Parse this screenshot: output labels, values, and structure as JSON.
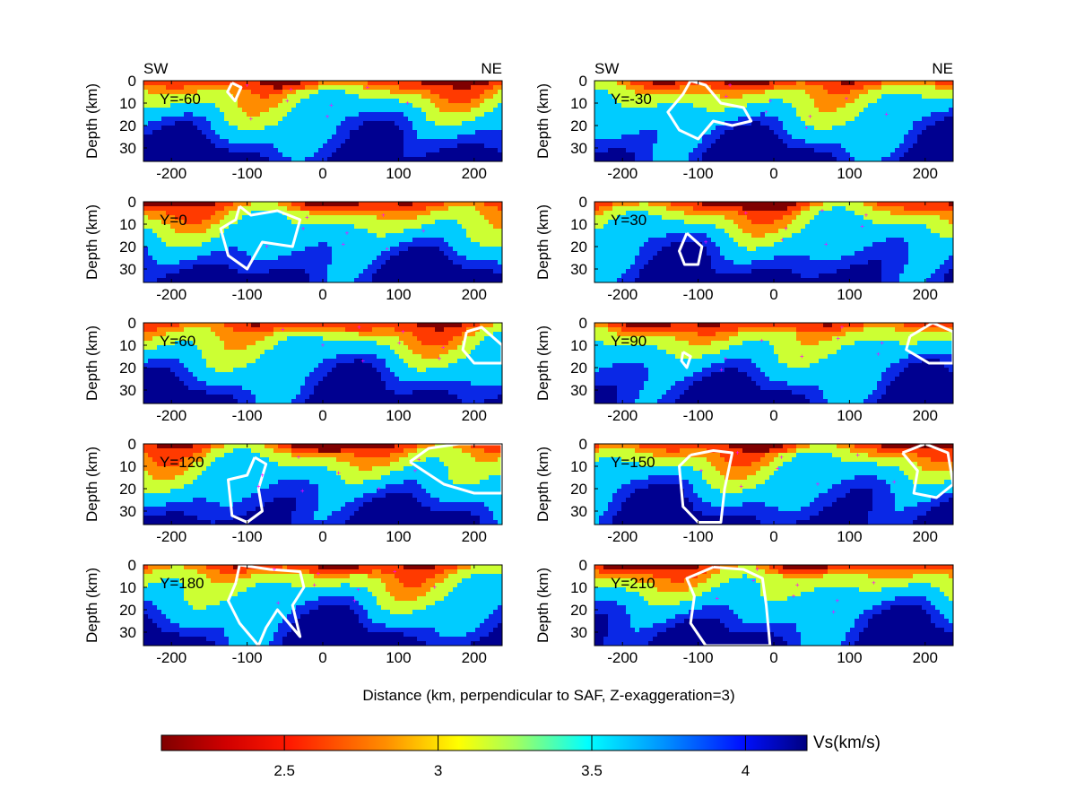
{
  "chart_data": {
    "type": "heatmap",
    "xlabel": "Distance (km, perpendicular to SAF, Z-exaggeration=3)",
    "ylabel": "Depth (km)",
    "xlim": [
      -237,
      237
    ],
    "ylim": [
      36,
      0
    ],
    "xticks": [
      -200,
      -100,
      0,
      100,
      200
    ],
    "yticks": [
      0,
      10,
      20,
      30
    ],
    "direction_labels": {
      "left": "SW",
      "right": "NE"
    },
    "panels": [
      {
        "label": "Y=-60"
      },
      {
        "label": "Y=-30"
      },
      {
        "label": "Y=0"
      },
      {
        "label": "Y=30"
      },
      {
        "label": "Y=60"
      },
      {
        "label": "Y=90"
      },
      {
        "label": "Y=120"
      },
      {
        "label": "Y=150"
      },
      {
        "label": "Y=180"
      },
      {
        "label": "Y=210"
      }
    ],
    "colorbar": {
      "label": "Vs(km/s)",
      "range": [
        2.1,
        4.2
      ],
      "ticks": [
        2.5,
        3,
        3.5,
        4
      ],
      "colormap": "jet"
    },
    "colors": {
      "level_colors": [
        "#7f0000",
        "#ff3a00",
        "#ff8c00",
        "#ccff33",
        "#00ccff",
        "#0a28e6",
        "#000090"
      ],
      "contour": "#ffffff",
      "events": "#ff00ff"
    }
  }
}
